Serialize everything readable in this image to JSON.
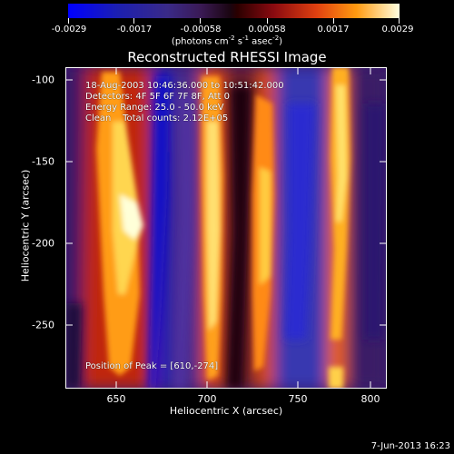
{
  "colorbar": {
    "tick_labels": [
      "-0.0029",
      "-0.0017",
      "-0.00058",
      "0.00058",
      "0.0017",
      "0.0029"
    ],
    "units_prefix": "(photons cm",
    "units_exp1": "-2",
    "units_mid": " s",
    "units_exp2": "-1",
    "units_mid2": " asec",
    "units_exp3": "-2",
    "units_suffix": ")"
  },
  "title": "Reconstructed RHESSI Image",
  "info": {
    "time_range": "18-Aug-2003 10:46:36.000 to 10:51:42.000",
    "detectors": "Detectors: 4F 5F 6F 7F 8F, Att 0",
    "energy": "Energy Range: 25.0 - 50.0 keV",
    "clean": "Clean    Total counts: 2.12E+05",
    "peak": "Position of Peak = [610,-274]"
  },
  "axes": {
    "xlabel": "Heliocentric X (arcsec)",
    "ylabel": "Heliocentric Y (arcsec)",
    "xtick_labels": [
      "650",
      "700",
      "750",
      "800"
    ],
    "ytick_labels": [
      "-100",
      "-150",
      "-200",
      "-250"
    ]
  },
  "timestamp": "7-Jun-2013 16:23"
}
